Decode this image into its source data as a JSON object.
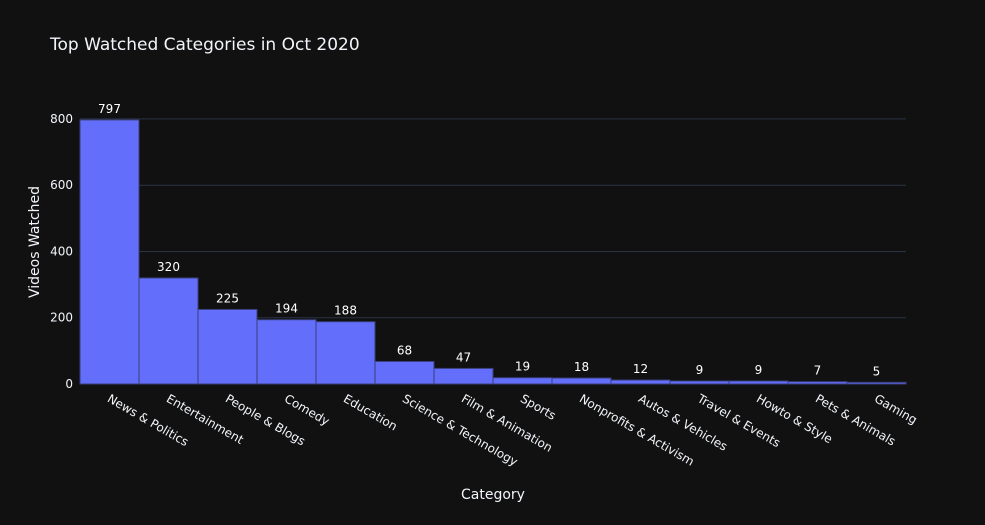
{
  "chart_data": {
    "type": "bar",
    "title": "Top Watched Categories in Oct 2020",
    "xlabel": "Category",
    "ylabel": "Videos Watched",
    "categories": [
      "News & Politics",
      "Entertainment",
      "People & Blogs",
      "Comedy",
      "Education",
      "Science & Technology",
      "Film & Animation",
      "Sports",
      "Nonprofits & Activism",
      "Autos & Vehicles",
      "Travel & Events",
      "Howto & Style",
      "Pets & Animals",
      "Gaming"
    ],
    "values": [
      797,
      320,
      225,
      194,
      188,
      68,
      47,
      19,
      18,
      12,
      9,
      9,
      7,
      5
    ],
    "yticks": [
      0,
      200,
      400,
      600,
      800
    ],
    "ylim": [
      0,
      839
    ],
    "grid": true,
    "colors": {
      "bar": "#636efa",
      "background": "#111111",
      "grid": "#283442",
      "text": "#f2f5fa"
    }
  }
}
